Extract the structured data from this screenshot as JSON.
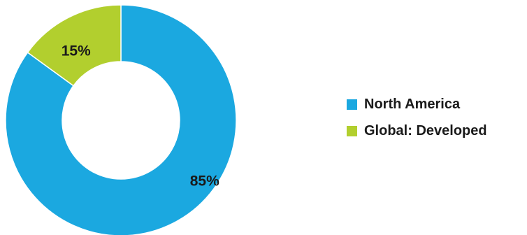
{
  "chart_data": {
    "type": "pie",
    "donut": true,
    "categories": [
      "North America",
      "Global: Developed"
    ],
    "values": [
      85,
      15
    ],
    "data_labels": [
      "85%",
      "15%"
    ],
    "colors": [
      "#1ba8e0",
      "#b2cf2e"
    ],
    "legend_position": "right"
  },
  "legend": {
    "items": [
      {
        "label": "North America",
        "color": "#1ba8e0"
      },
      {
        "label": "Global: Developed",
        "color": "#b2cf2e"
      }
    ]
  }
}
